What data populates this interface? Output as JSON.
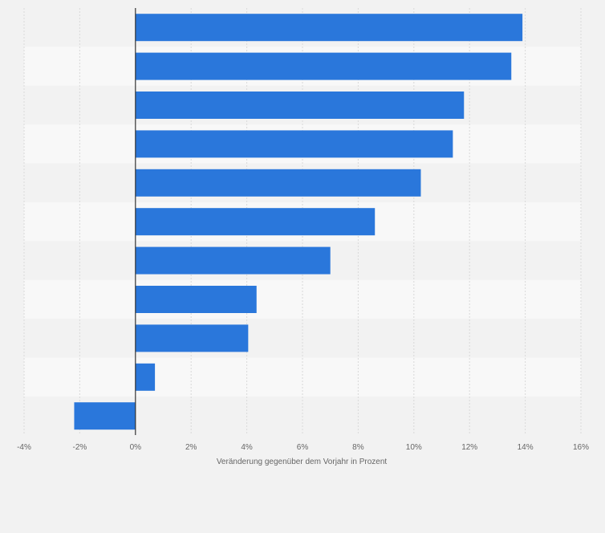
{
  "colors": {
    "bar": "#2a77db",
    "page_bg": "#f2f2f2",
    "band_dark": "#f2f2f2",
    "band_light": "#f8f8f8",
    "grid": "#d9d9d9",
    "zero_line": "#333333",
    "tick_text": "#666666",
    "axis_title": "#666666"
  },
  "chart_data": {
    "type": "bar",
    "orientation": "horizontal",
    "categories": [
      "",
      "",
      "",
      "",
      "",
      "",
      "",
      "",
      "",
      "",
      ""
    ],
    "values": [
      13.9,
      13.5,
      11.8,
      11.4,
      10.25,
      8.6,
      7.0,
      4.35,
      4.05,
      0.7,
      -2.2
    ],
    "xlim": [
      -4,
      16
    ],
    "xticks": [
      -4,
      -2,
      0,
      2,
      4,
      6,
      8,
      10,
      12,
      14,
      16
    ],
    "tick_labels": [
      "-4%",
      "-2%",
      "0%",
      "2%",
      "4%",
      "6%",
      "8%",
      "10%",
      "12%",
      "14%",
      "16%"
    ],
    "xlabel": "Veränderung gegenüber dem Vorjahr in Prozent",
    "ylabel": "",
    "title": "",
    "grid": true,
    "legend": "none"
  }
}
